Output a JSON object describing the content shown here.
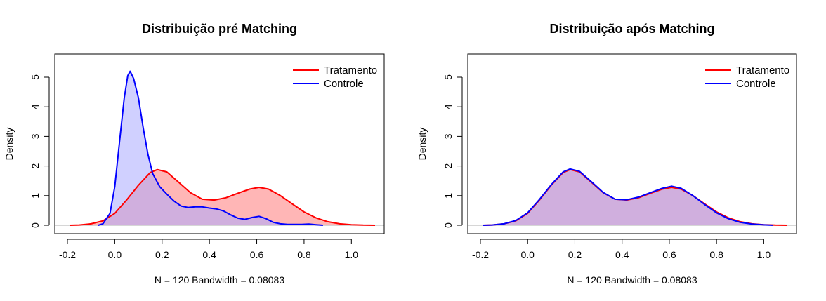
{
  "chart_data": [
    {
      "type": "area",
      "title": "Distribuição pré Matching",
      "xlabel": "N = 120   Bandwidth = 0.08083",
      "ylabel": "Density",
      "xlim": [
        -0.2,
        1.1
      ],
      "ylim": [
        0,
        5.2
      ],
      "x_ticks": [
        "-0.2",
        "0.0",
        "0.2",
        "0.4",
        "0.6",
        "0.8",
        "1.0"
      ],
      "y_ticks": [
        "0",
        "1",
        "2",
        "3",
        "4",
        "5"
      ],
      "legend_position": "top-right",
      "series": [
        {
          "name": "Tratamento",
          "line_color": "#ff0000",
          "fill_color": "#ff9d9d",
          "points": [
            [
              -0.19,
              0
            ],
            [
              -0.15,
              0.01
            ],
            [
              -0.1,
              0.05
            ],
            [
              -0.05,
              0.15
            ],
            [
              0.0,
              0.4
            ],
            [
              0.05,
              0.85
            ],
            [
              0.1,
              1.35
            ],
            [
              0.15,
              1.78
            ],
            [
              0.18,
              1.88
            ],
            [
              0.22,
              1.8
            ],
            [
              0.27,
              1.45
            ],
            [
              0.32,
              1.1
            ],
            [
              0.37,
              0.88
            ],
            [
              0.42,
              0.85
            ],
            [
              0.47,
              0.93
            ],
            [
              0.52,
              1.08
            ],
            [
              0.57,
              1.22
            ],
            [
              0.61,
              1.28
            ],
            [
              0.65,
              1.22
            ],
            [
              0.7,
              1.0
            ],
            [
              0.75,
              0.72
            ],
            [
              0.8,
              0.45
            ],
            [
              0.85,
              0.25
            ],
            [
              0.9,
              0.12
            ],
            [
              0.95,
              0.05
            ],
            [
              1.0,
              0.02
            ],
            [
              1.05,
              0.005
            ],
            [
              1.1,
              0
            ]
          ]
        },
        {
          "name": "Controle",
          "line_color": "#0000ff",
          "fill_color": "#a9a9ff",
          "points": [
            [
              -0.07,
              0
            ],
            [
              -0.05,
              0.05
            ],
            [
              -0.02,
              0.4
            ],
            [
              0.0,
              1.3
            ],
            [
              0.02,
              2.8
            ],
            [
              0.04,
              4.3
            ],
            [
              0.055,
              5.05
            ],
            [
              0.065,
              5.2
            ],
            [
              0.08,
              4.95
            ],
            [
              0.1,
              4.3
            ],
            [
              0.12,
              3.3
            ],
            [
              0.14,
              2.4
            ],
            [
              0.16,
              1.75
            ],
            [
              0.19,
              1.3
            ],
            [
              0.22,
              1.05
            ],
            [
              0.25,
              0.82
            ],
            [
              0.28,
              0.65
            ],
            [
              0.31,
              0.6
            ],
            [
              0.34,
              0.62
            ],
            [
              0.37,
              0.62
            ],
            [
              0.4,
              0.58
            ],
            [
              0.43,
              0.55
            ],
            [
              0.46,
              0.48
            ],
            [
              0.49,
              0.35
            ],
            [
              0.52,
              0.24
            ],
            [
              0.55,
              0.2
            ],
            [
              0.58,
              0.26
            ],
            [
              0.61,
              0.3
            ],
            [
              0.64,
              0.22
            ],
            [
              0.67,
              0.1
            ],
            [
              0.7,
              0.05
            ],
            [
              0.73,
              0.03
            ],
            [
              0.76,
              0.03
            ],
            [
              0.79,
              0.03
            ],
            [
              0.82,
              0.04
            ],
            [
              0.85,
              0.02
            ],
            [
              0.88,
              0
            ]
          ]
        }
      ]
    },
    {
      "type": "area",
      "title": "Distribuição após Matching",
      "xlabel": "N = 120   Bandwidth = 0.08083",
      "ylabel": "Density",
      "xlim": [
        -0.2,
        1.1
      ],
      "ylim": [
        0,
        5.2
      ],
      "x_ticks": [
        "-0.2",
        "0.0",
        "0.2",
        "0.4",
        "0.6",
        "0.8",
        "1.0"
      ],
      "y_ticks": [
        "0",
        "1",
        "2",
        "3",
        "4",
        "5"
      ],
      "legend_position": "top-right",
      "series": [
        {
          "name": "Tratamento",
          "line_color": "#ff0000",
          "fill_color": "#ff9d9d",
          "points": [
            [
              -0.19,
              0
            ],
            [
              -0.15,
              0.01
            ],
            [
              -0.1,
              0.05
            ],
            [
              -0.05,
              0.15
            ],
            [
              0.0,
              0.4
            ],
            [
              0.05,
              0.85
            ],
            [
              0.1,
              1.35
            ],
            [
              0.15,
              1.78
            ],
            [
              0.18,
              1.88
            ],
            [
              0.22,
              1.8
            ],
            [
              0.27,
              1.45
            ],
            [
              0.32,
              1.1
            ],
            [
              0.37,
              0.88
            ],
            [
              0.42,
              0.85
            ],
            [
              0.47,
              0.93
            ],
            [
              0.52,
              1.08
            ],
            [
              0.57,
              1.22
            ],
            [
              0.61,
              1.28
            ],
            [
              0.65,
              1.22
            ],
            [
              0.7,
              1.0
            ],
            [
              0.75,
              0.72
            ],
            [
              0.8,
              0.45
            ],
            [
              0.85,
              0.25
            ],
            [
              0.9,
              0.12
            ],
            [
              0.95,
              0.05
            ],
            [
              1.0,
              0.02
            ],
            [
              1.05,
              0.005
            ],
            [
              1.1,
              0
            ]
          ]
        },
        {
          "name": "Controle",
          "line_color": "#0000ff",
          "fill_color": "#a9a9ff",
          "points": [
            [
              -0.19,
              0
            ],
            [
              -0.15,
              0.01
            ],
            [
              -0.1,
              0.05
            ],
            [
              -0.05,
              0.16
            ],
            [
              0.0,
              0.42
            ],
            [
              0.05,
              0.87
            ],
            [
              0.1,
              1.37
            ],
            [
              0.15,
              1.8
            ],
            [
              0.18,
              1.9
            ],
            [
              0.22,
              1.82
            ],
            [
              0.27,
              1.47
            ],
            [
              0.32,
              1.11
            ],
            [
              0.37,
              0.88
            ],
            [
              0.42,
              0.86
            ],
            [
              0.47,
              0.95
            ],
            [
              0.52,
              1.1
            ],
            [
              0.57,
              1.25
            ],
            [
              0.61,
              1.32
            ],
            [
              0.65,
              1.25
            ],
            [
              0.7,
              1.0
            ],
            [
              0.75,
              0.7
            ],
            [
              0.8,
              0.42
            ],
            [
              0.85,
              0.22
            ],
            [
              0.9,
              0.1
            ],
            [
              0.95,
              0.04
            ],
            [
              1.0,
              0.015
            ],
            [
              1.04,
              0
            ]
          ]
        }
      ]
    }
  ]
}
